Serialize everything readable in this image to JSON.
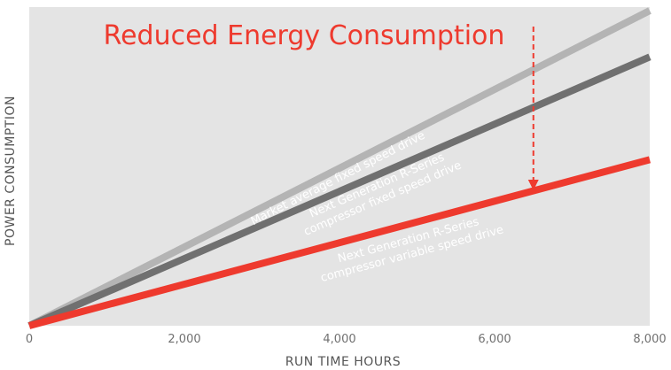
{
  "chart_data": {
    "type": "line",
    "title": "",
    "xlabel": "RUN TIME HOURS",
    "ylabel": "POWER CONSUMPTION",
    "xlim": [
      0,
      8000
    ],
    "x_ticks": [
      "0",
      "2,000",
      "4,000",
      "6,000",
      "8,000"
    ],
    "grid": false,
    "series": [
      {
        "x": [
          0,
          8000
        ],
        "y": [
          0,
          1.0
        ],
        "color": "#b4b4b4"
      },
      {
        "x": [
          0,
          8000
        ],
        "y": [
          0,
          0.853
        ],
        "color": "#707070"
      },
      {
        "x": [
          0,
          8000
        ],
        "y": [
          0,
          0.527
        ],
        "color": "#ee3a2e"
      }
    ],
    "line_labels": [
      [
        "Market average fixed speed drive"
      ],
      [
        "Next Generation R-Series",
        "compressor fixed speed drive"
      ],
      [
        "Next Generation R-Series",
        "compressor variable speed drive"
      ]
    ],
    "annotation": {
      "text": "Reduced Energy Consumption",
      "x": 6500,
      "color": "#ee3a2e"
    },
    "plot_background": "#e4e4e4"
  }
}
